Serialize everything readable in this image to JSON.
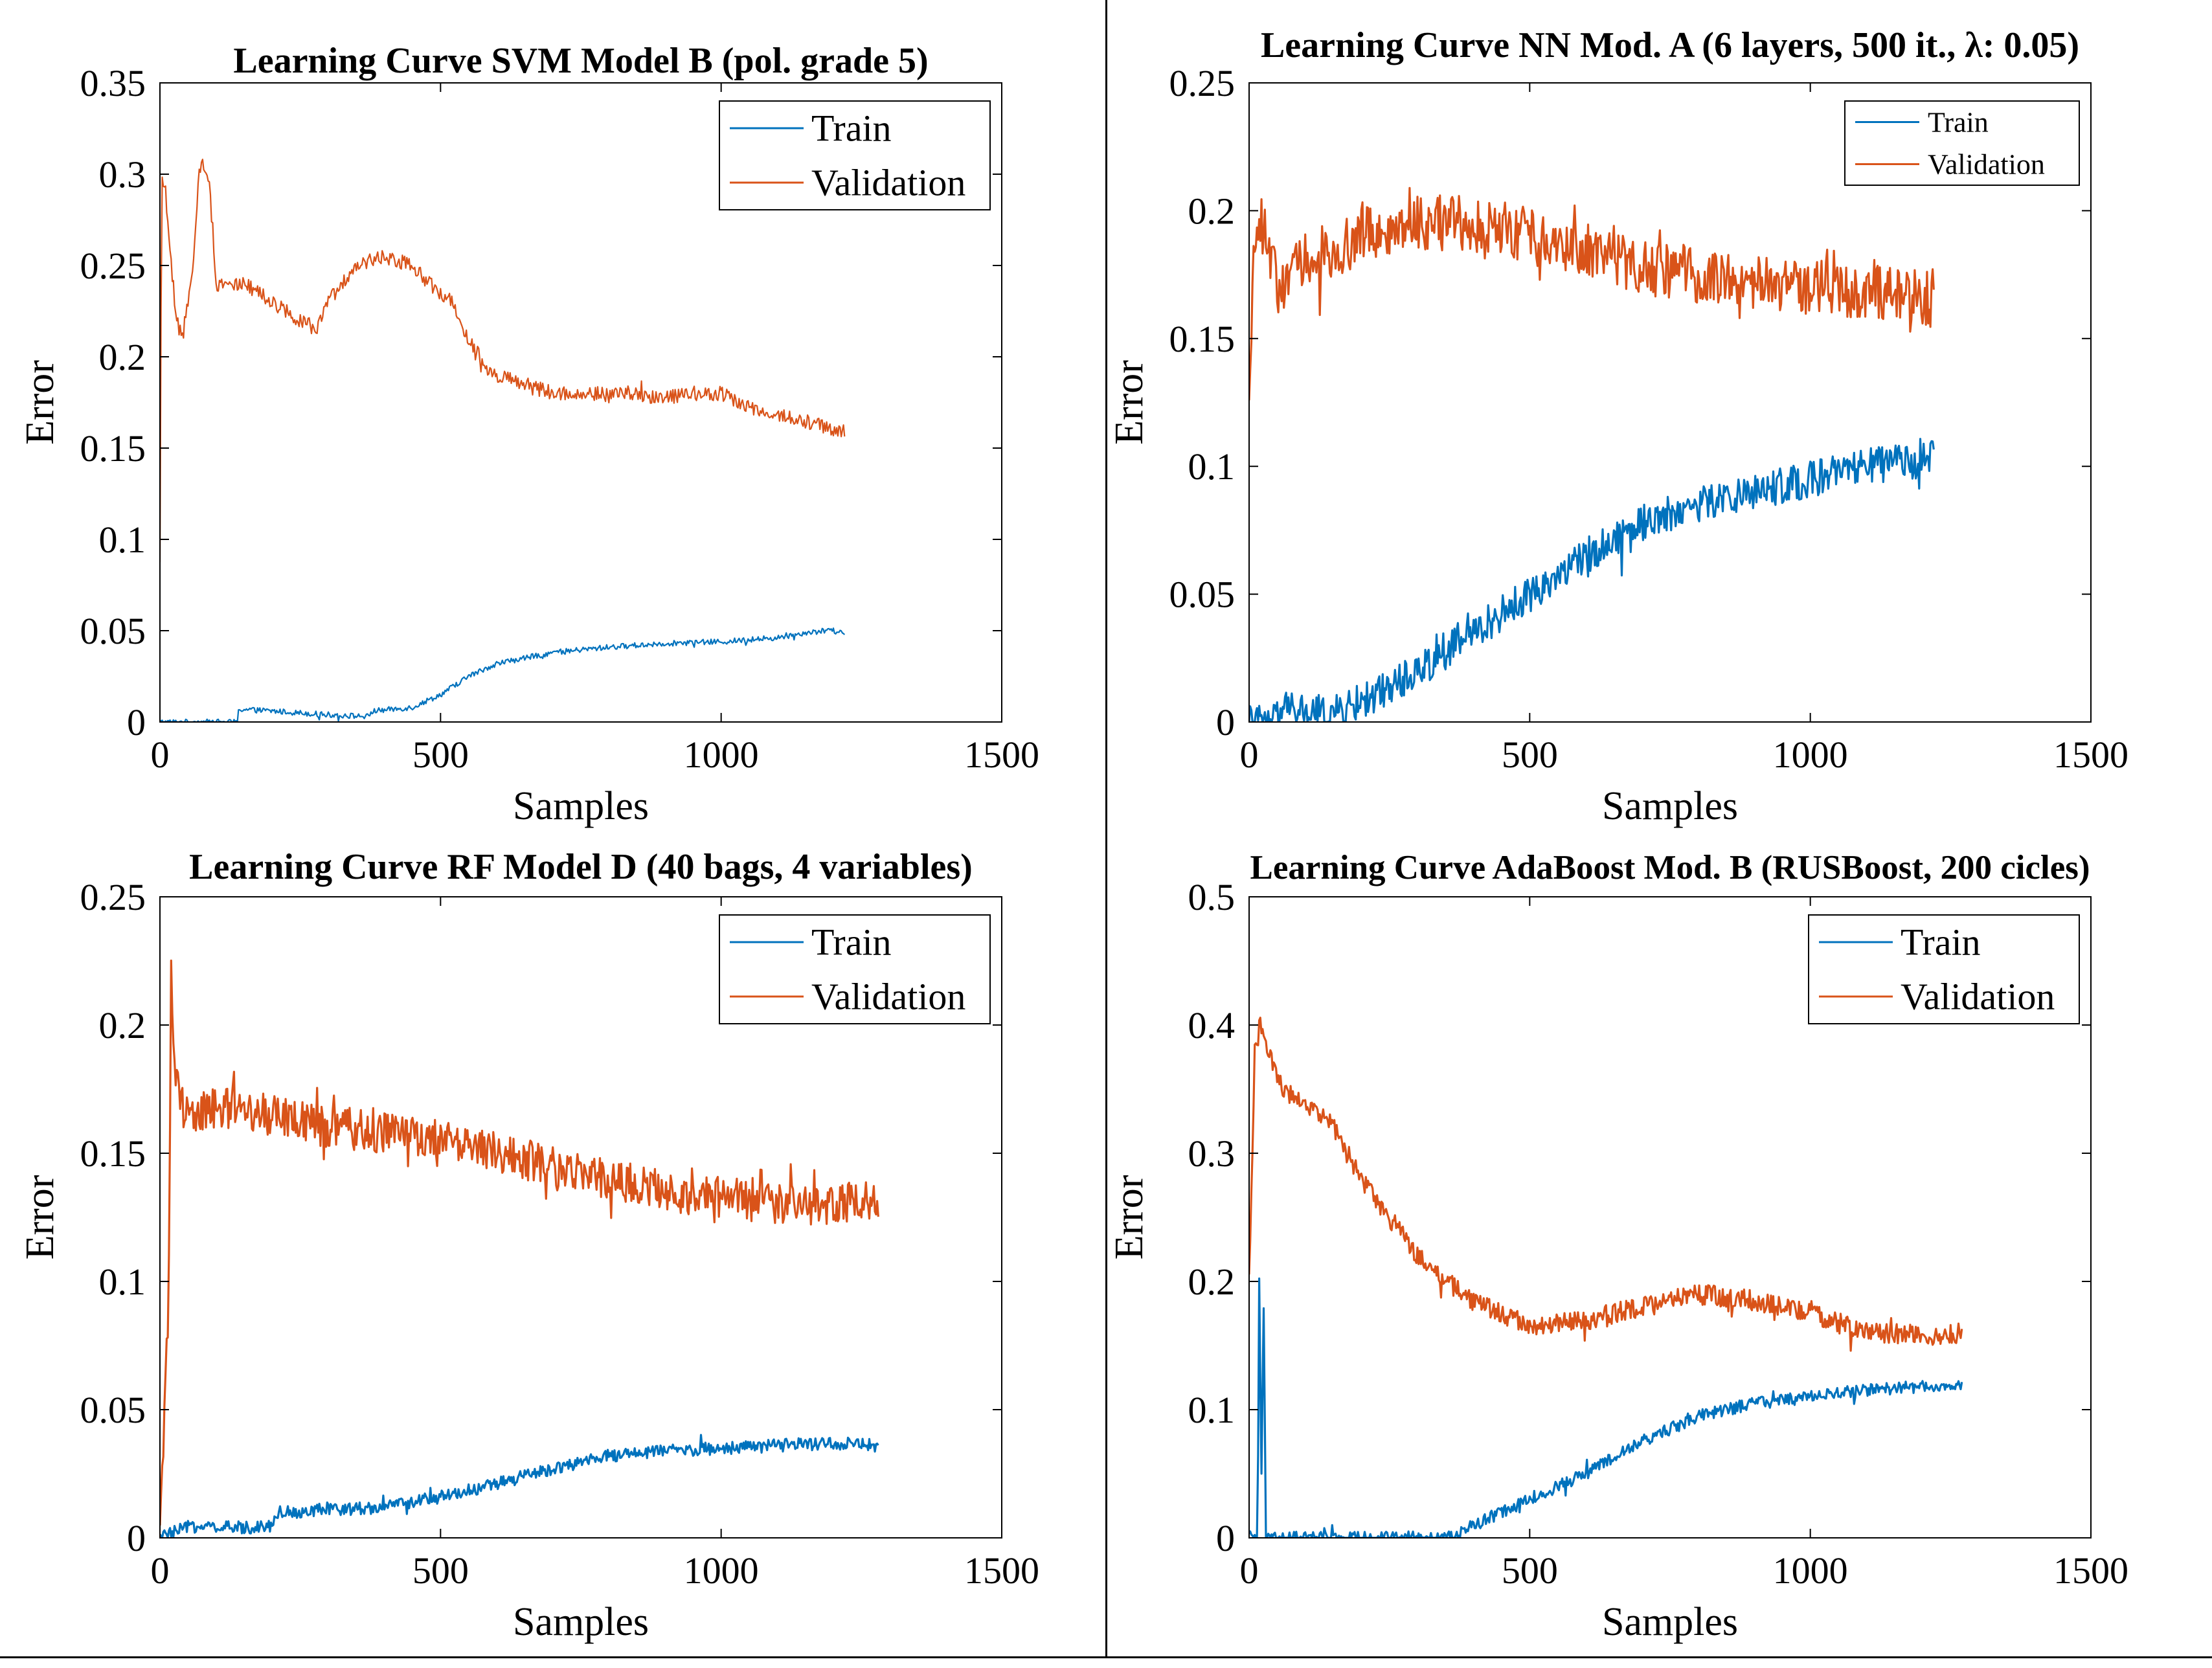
{
  "colors": {
    "train": "#0072BD",
    "validation": "#D95319",
    "axis": "#000000",
    "background": "#ffffff"
  },
  "chart_data": [
    {
      "type": "line",
      "title": "Learning Curve SVM Model B (pol. grade 5)",
      "xlabel": "Samples",
      "ylabel": "Error",
      "xlim": [
        0,
        1500
      ],
      "ylim": [
        0,
        0.35
      ],
      "xticks": [
        0,
        500,
        1000,
        1500
      ],
      "xtick_labels": [
        "0",
        "500",
        "1000",
        "1500"
      ],
      "yticks": [
        0,
        0.05,
        0.1,
        0.15,
        0.2,
        0.25,
        0.3,
        0.35
      ],
      "ytick_labels": [
        "0",
        "0.05",
        "0.1",
        "0.15",
        "0.2",
        "0.25",
        "0.3",
        "0.35"
      ],
      "legend": [
        "Train",
        "Validation"
      ],
      "legend_position": "top-right",
      "legend_size": "large",
      "grid": false,
      "series": [
        {
          "name": "Train",
          "noise": 0.0015,
          "thick": false,
          "x": [
            0,
            138,
            140,
            200,
            300,
            370,
            380,
            450,
            500,
            550,
            600,
            700,
            800,
            900,
            1000,
            1100,
            1150,
            1190,
            1220
          ],
          "values": [
            0,
            0,
            0.007,
            0.006,
            0.004,
            0.003,
            0.006,
            0.008,
            0.015,
            0.025,
            0.032,
            0.038,
            0.041,
            0.043,
            0.044,
            0.046,
            0.049,
            0.05,
            0.049
          ]
        },
        {
          "name": "Validation",
          "noise": 0.004,
          "thick": false,
          "x": [
            0,
            3,
            10,
            20,
            30,
            40,
            60,
            70,
            75,
            90,
            100,
            150,
            200,
            250,
            280,
            300,
            350,
            400,
            450,
            480,
            520,
            550,
            580,
            600,
            650,
            700,
            750,
            800,
            900,
            1000,
            1050,
            1100,
            1150,
            1200,
            1220
          ],
          "values": [
            0.08,
            0.3,
            0.29,
            0.25,
            0.22,
            0.21,
            0.25,
            0.3,
            0.31,
            0.29,
            0.24,
            0.24,
            0.23,
            0.22,
            0.215,
            0.23,
            0.25,
            0.255,
            0.25,
            0.24,
            0.23,
            0.21,
            0.195,
            0.19,
            0.185,
            0.18,
            0.18,
            0.18,
            0.178,
            0.18,
            0.172,
            0.168,
            0.165,
            0.16,
            0.16
          ]
        }
      ]
    },
    {
      "type": "line",
      "title": "Learning Curve NN Mod. A (6 layers, 500 it., λ: 0.05)",
      "xlabel": "Samples",
      "ylabel": "Error",
      "xlim": [
        0,
        1500
      ],
      "ylim": [
        0,
        0.25
      ],
      "xticks": [
        0,
        500,
        1000,
        1500
      ],
      "xtick_labels": [
        "0",
        "500",
        "1000",
        "1500"
      ],
      "yticks": [
        0,
        0.05,
        0.1,
        0.15,
        0.2,
        0.25
      ],
      "ytick_labels": [
        "0",
        "0.05",
        "0.1",
        "0.15",
        "0.2",
        "0.25"
      ],
      "legend": [
        "Train",
        "Validation"
      ],
      "legend_position": "top-right",
      "legend_size": "small",
      "grid": false,
      "series": [
        {
          "name": "Train",
          "noise": 0.007,
          "thick": true,
          "x": [
            0,
            50,
            60,
            150,
            200,
            300,
            400,
            500,
            600,
            700,
            800,
            900,
            1000,
            1100,
            1220
          ],
          "values": [
            0,
            0,
            0.005,
            0.003,
            0.008,
            0.02,
            0.035,
            0.05,
            0.065,
            0.078,
            0.085,
            0.09,
            0.095,
            0.1,
            0.103
          ]
        },
        {
          "name": "Validation",
          "noise": 0.011,
          "thick": true,
          "x": [
            0,
            5,
            15,
            30,
            50,
            100,
            200,
            300,
            400,
            500,
            600,
            700,
            800,
            900,
            1000,
            1100,
            1220
          ],
          "values": [
            0.12,
            0.17,
            0.2,
            0.19,
            0.17,
            0.18,
            0.19,
            0.195,
            0.195,
            0.19,
            0.185,
            0.178,
            0.175,
            0.172,
            0.17,
            0.168,
            0.165
          ]
        }
      ]
    },
    {
      "type": "line",
      "title": "Learning Curve RF Model D (40 bags, 4 variables)",
      "xlabel": "Samples",
      "ylabel": "Error",
      "xlim": [
        0,
        1500
      ],
      "ylim": [
        0,
        0.25
      ],
      "xticks": [
        0,
        500,
        1000,
        1500
      ],
      "xtick_labels": [
        "0",
        "500",
        "1000",
        "1500"
      ],
      "yticks": [
        0,
        0.05,
        0.1,
        0.15,
        0.2,
        0.25
      ],
      "ytick_labels": [
        "0",
        "0.05",
        "0.1",
        "0.15",
        "0.2",
        "0.25"
      ],
      "legend": [
        "Train",
        "Validation"
      ],
      "legend_position": "top-right",
      "legend_size": "large",
      "grid": false,
      "series": [
        {
          "name": "Train",
          "noise": 0.0025,
          "thick": true,
          "x": [
            0,
            60,
            100,
            150,
            200,
            210,
            300,
            400,
            500,
            600,
            700,
            800,
            900,
            1000,
            1100,
            1200,
            1280
          ],
          "values": [
            0,
            0.005,
            0.004,
            0.004,
            0.005,
            0.01,
            0.011,
            0.012,
            0.016,
            0.021,
            0.027,
            0.032,
            0.034,
            0.035,
            0.036,
            0.037,
            0.036
          ]
        },
        {
          "name": "Validation",
          "noise": 0.008,
          "thick": true,
          "x": [
            0,
            15,
            20,
            25,
            35,
            50,
            100,
            200,
            300,
            400,
            500,
            600,
            700,
            800,
            900,
            1000,
            1100,
            1200,
            1280
          ],
          "values": [
            0,
            0.09,
            0.22,
            0.19,
            0.17,
            0.165,
            0.168,
            0.165,
            0.16,
            0.158,
            0.155,
            0.15,
            0.145,
            0.14,
            0.135,
            0.133,
            0.13,
            0.13,
            0.132
          ]
        }
      ]
    },
    {
      "type": "line",
      "title": "Learning Curve AdaBoost Mod. B (RUSBoost, 200 cicles)",
      "xlabel": "Samples",
      "ylabel": "Error",
      "xlim": [
        0,
        1500
      ],
      "ylim": [
        0,
        0.5
      ],
      "xticks": [
        0,
        500,
        1000,
        1500
      ],
      "xtick_labels": [
        "0",
        "500",
        "1000",
        "1500"
      ],
      "yticks": [
        0,
        0.1,
        0.2,
        0.3,
        0.4,
        0.5
      ],
      "ytick_labels": [
        "0",
        "0.1",
        "0.2",
        "0.3",
        "0.4",
        "0.5"
      ],
      "legend": [
        "Train",
        "Validation"
      ],
      "legend_position": "top-right",
      "legend_size": "large",
      "grid": false,
      "series": [
        {
          "name": "Train",
          "noise": 0.005,
          "thick": true,
          "x": [
            0,
            15,
            18,
            22,
            26,
            30,
            360,
            380,
            400,
            500,
            600,
            700,
            800,
            900,
            1000,
            1100,
            1200,
            1270
          ],
          "values": [
            0,
            0,
            0.2,
            0.05,
            0.18,
            0,
            0,
            0.005,
            0.01,
            0.03,
            0.05,
            0.075,
            0.095,
            0.105,
            0.11,
            0.115,
            0.118,
            0.12
          ]
        },
        {
          "name": "Validation",
          "noise": 0.008,
          "thick": true,
          "x": [
            0,
            10,
            20,
            40,
            60,
            100,
            150,
            200,
            250,
            300,
            350,
            400,
            450,
            500,
            600,
            700,
            800,
            900,
            1000,
            1100,
            1200,
            1270
          ],
          "values": [
            0.2,
            0.38,
            0.4,
            0.37,
            0.35,
            0.34,
            0.32,
            0.28,
            0.25,
            0.22,
            0.2,
            0.185,
            0.175,
            0.165,
            0.17,
            0.18,
            0.19,
            0.185,
            0.175,
            0.16,
            0.158,
            0.16
          ]
        }
      ]
    }
  ]
}
